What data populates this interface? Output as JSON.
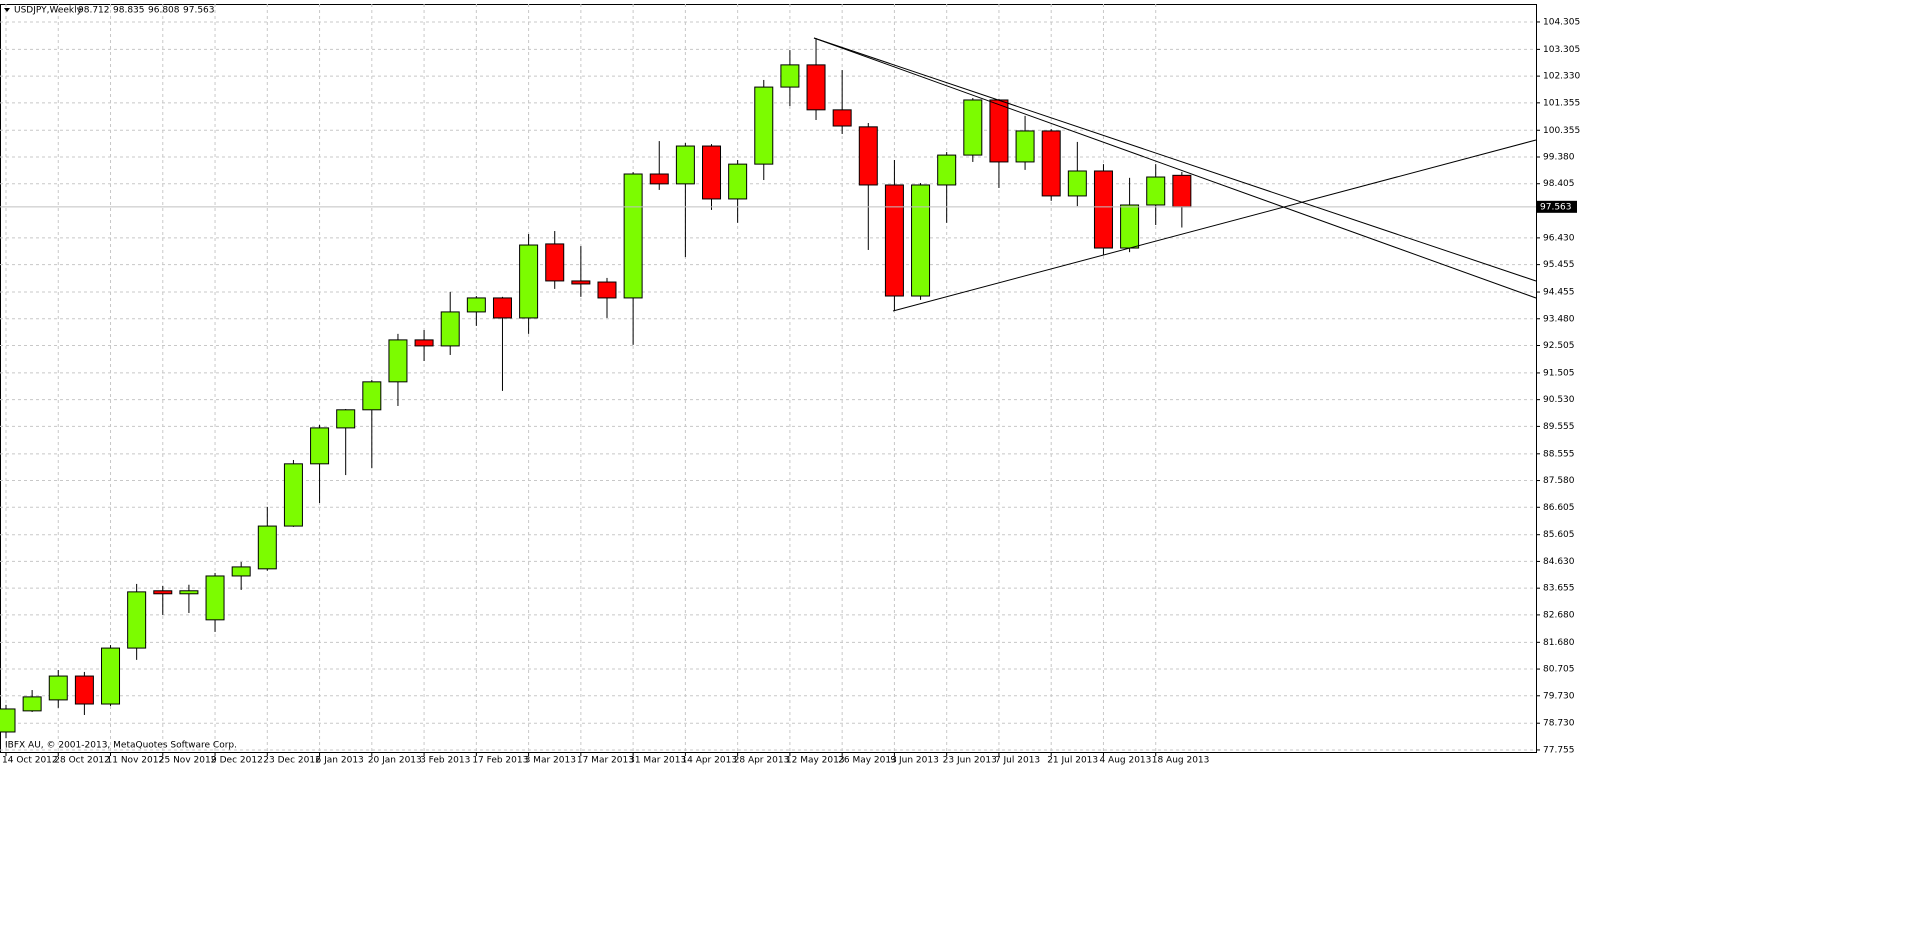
{
  "chart_data": {
    "type": "candlestick",
    "title": "USDJPY,Weekly",
    "watermark": "IBFX AU, © 2001-2013, MetaQuotes Software Corp.",
    "categories": [
      "14 Oct 2012",
      null,
      "28 Oct 2012",
      null,
      "11 Nov 2012",
      null,
      "25 Nov 2012",
      null,
      "9 Dec 2012",
      null,
      "23 Dec 2012",
      null,
      "6 Jan 2013",
      null,
      "20 Jan 2013",
      null,
      "3 Feb 2013",
      null,
      "17 Feb 2013",
      null,
      "3 Mar 2013",
      null,
      "17 Mar 2013",
      null,
      "31 Mar 2013",
      null,
      "14 Apr 2013",
      null,
      "28 Apr 2013",
      null,
      "12 May 2013",
      null,
      "26 May 2013",
      null,
      "9 Jun 2013",
      null,
      "23 Jun 2013",
      null,
      "7 Jul 2013",
      null,
      "21 Jul 2013",
      null,
      "4 Aug 2013",
      null,
      "18 Aug 2013",
      null
    ],
    "open": [
      78.41,
      79.18,
      79.58,
      80.45,
      79.43,
      81.47,
      83.56,
      83.45,
      82.5,
      84.1,
      84.36,
      85.92,
      88.19,
      89.5,
      90.16,
      91.18,
      92.71,
      92.49,
      93.73,
      94.24,
      93.51,
      96.21,
      94.86,
      94.82,
      94.24,
      98.76,
      98.4,
      99.78,
      97.85,
      99.12,
      101.93,
      102.74,
      101.1,
      100.48,
      98.36,
      94.31,
      98.36,
      99.45,
      101.46,
      99.2,
      100.33,
      97.96,
      98.87,
      96.06,
      97.63,
      98.712
    ],
    "high": [
      79.4,
      79.94,
      80.67,
      80.6,
      81.58,
      83.81,
      83.74,
      83.78,
      84.21,
      84.61,
      86.62,
      88.33,
      89.61,
      90.19,
      91.25,
      92.93,
      93.07,
      94.46,
      94.31,
      94.28,
      96.57,
      96.68,
      96.13,
      94.97,
      98.83,
      99.96,
      99.89,
      99.85,
      99.27,
      102.19,
      103.28,
      103.72,
      102.55,
      100.62,
      99.27,
      98.43,
      99.56,
      101.53,
      101.5,
      100.88,
      100.4,
      99.93,
      99.12,
      98.62,
      99.12,
      98.835
    ],
    "low": [
      78.19,
      79.14,
      79.29,
      79.03,
      79.36,
      81.04,
      82.68,
      82.75,
      82.06,
      83.59,
      84.29,
      85.89,
      86.76,
      87.78,
      88.04,
      90.3,
      91.94,
      92.16,
      93.22,
      90.85,
      92.93,
      94.57,
      94.28,
      93.51,
      92.53,
      98.18,
      95.73,
      97.45,
      96.98,
      98.54,
      101.24,
      100.73,
      100.22,
      95.99,
      93.77,
      94.17,
      96.98,
      99.2,
      98.25,
      98.91,
      97.78,
      97.59,
      95.8,
      95.91,
      96.9,
      96.808
    ],
    "close": [
      79.25,
      79.69,
      80.45,
      79.43,
      81.47,
      83.52,
      83.45,
      83.56,
      84.1,
      84.43,
      85.92,
      88.19,
      89.5,
      90.16,
      91.18,
      92.71,
      92.49,
      93.73,
      94.24,
      93.51,
      96.17,
      94.86,
      94.75,
      94.24,
      98.76,
      98.4,
      99.78,
      97.85,
      99.12,
      101.93,
      102.74,
      101.1,
      100.51,
      98.36,
      94.31,
      98.36,
      99.45,
      101.46,
      99.2,
      100.33,
      97.96,
      98.87,
      96.06,
      97.63,
      98.65,
      97.563
    ],
    "up_color": "#7cfc00",
    "down_color": "#ff0000",
    "ylim": [
      77.68,
      104.96
    ],
    "yticks": [
      104.305,
      103.305,
      {
        "value": 102.33,
        "label": "102.330"
      },
      101.355,
      100.355,
      {
        "value": 99.38,
        "label": "99.380"
      },
      98.405,
      {
        "value": 96.43,
        "label": "96.430"
      },
      95.455,
      94.455,
      {
        "value": 93.48,
        "label": "93.480"
      },
      92.505,
      91.505,
      {
        "value": 90.53,
        "label": "90.530"
      },
      89.555,
      88.555,
      {
        "value": 87.58,
        "label": "87.580"
      },
      86.605,
      85.605,
      {
        "value": 84.63,
        "label": "84.630"
      },
      83.655,
      {
        "value": 82.68,
        "label": "82.680"
      },
      {
        "value": 81.68,
        "label": "81.680"
      },
      80.705,
      {
        "value": 79.73,
        "label": "79.730"
      },
      {
        "value": 78.73,
        "label": "78.730"
      },
      77.755
    ],
    "grid": true
  }
}
